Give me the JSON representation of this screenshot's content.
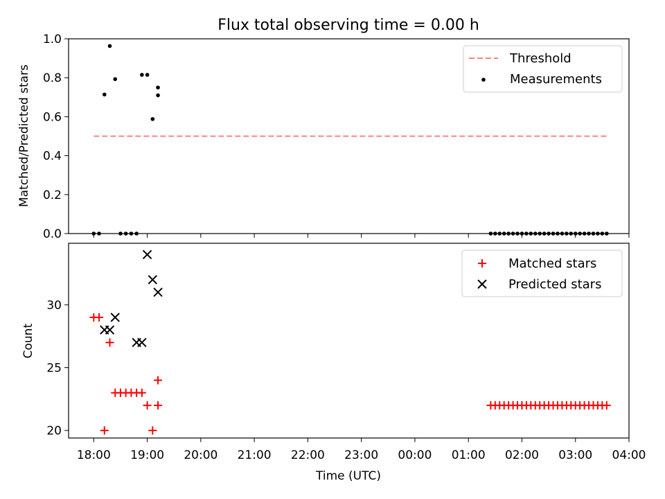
{
  "title": "Flux total observing time = 0.00 h",
  "xlabel": "Time (UTC)",
  "x_ticks": [
    "18:00",
    "19:00",
    "20:00",
    "21:00",
    "22:00",
    "23:00",
    "00:00",
    "01:00",
    "02:00",
    "03:00",
    "04:00"
  ],
  "x_range_hours": [
    17.53,
    28.0
  ],
  "chart_data": [
    {
      "type": "scatter",
      "ylabel": "Matched/Predicted stars",
      "ylim": [
        0.0,
        1.0
      ],
      "y_ticks": [
        "0.0",
        "0.2",
        "0.4",
        "0.6",
        "0.8",
        "1.0"
      ],
      "legend_position": "top-right",
      "legend": [
        "Threshold",
        "Measurements"
      ],
      "threshold": {
        "name": "Threshold",
        "value": 0.5,
        "x_range": [
          "18:00",
          "03:35"
        ],
        "color": "#ff8080"
      },
      "series": [
        {
          "name": "Measurements",
          "color": "#000000",
          "x": [
            "18:00",
            "18:06",
            "18:12",
            "18:18",
            "18:24",
            "18:30",
            "18:36",
            "18:42",
            "18:48",
            "18:54",
            "19:00",
            "19:06",
            "19:12",
            "01:25",
            "01:30",
            "01:35",
            "01:40",
            "01:45",
            "01:50",
            "01:55",
            "02:00",
            "02:05",
            "02:10",
            "02:15",
            "02:20",
            "02:25",
            "02:30",
            "02:35",
            "02:40",
            "02:45",
            "02:50",
            "02:55",
            "03:00",
            "03:05",
            "03:10",
            "03:15",
            "03:20",
            "03:25",
            "03:30",
            "03:35"
          ],
          "y": [
            0.0,
            0.0,
            0.714,
            0.963,
            0.793,
            0.0,
            0.0,
            0.0,
            0.0,
            0.815,
            0.815,
            0.588,
            0.75,
            0.0,
            0.0,
            0.0,
            0.0,
            0.0,
            0.0,
            0.0,
            0.0,
            0.0,
            0.0,
            0.0,
            0.0,
            0.0,
            0.0,
            0.0,
            0.0,
            0.0,
            0.0,
            0.0,
            0.0,
            0.0,
            0.0,
            0.0,
            0.0,
            0.0,
            0.0,
            0.0
          ]
        }
      ],
      "extra_points": [
        {
          "x": "19:12",
          "y": 0.71
        }
      ]
    },
    {
      "type": "scatter",
      "ylabel": "Count",
      "ylim": [
        19.4,
        34.9
      ],
      "y_ticks": [
        "20",
        "25",
        "30"
      ],
      "y_tick_values": [
        20,
        25,
        30
      ],
      "legend_position": "top-right",
      "legend": [
        "Matched stars",
        "Predicted stars"
      ],
      "series": [
        {
          "name": "Matched stars",
          "marker": "plus",
          "color": "#ff0000",
          "x": [
            "18:00",
            "18:06",
            "18:12",
            "18:18",
            "18:24",
            "18:30",
            "18:36",
            "18:42",
            "18:48",
            "18:54",
            "19:00",
            "19:06",
            "19:12",
            "19:12",
            "01:25",
            "01:30",
            "01:35",
            "01:40",
            "01:45",
            "01:50",
            "01:55",
            "02:00",
            "02:05",
            "02:10",
            "02:15",
            "02:20",
            "02:25",
            "02:30",
            "02:35",
            "02:40",
            "02:45",
            "02:50",
            "02:55",
            "03:00",
            "03:05",
            "03:10",
            "03:15",
            "03:20",
            "03:25",
            "03:30",
            "03:35"
          ],
          "y": [
            29,
            29,
            20,
            27,
            23,
            23,
            23,
            23,
            23,
            23,
            22,
            20,
            24,
            22,
            22,
            22,
            22,
            22,
            22,
            22,
            22,
            22,
            22,
            22,
            22,
            22,
            22,
            22,
            22,
            22,
            22,
            22,
            22,
            22,
            22,
            22,
            22,
            22,
            22,
            22,
            22
          ]
        },
        {
          "name": "Predicted stars",
          "marker": "x",
          "color": "#000000",
          "x": [
            "18:12",
            "18:18",
            "18:24",
            "18:48",
            "18:54",
            "19:00",
            "19:06",
            "19:12"
          ],
          "y": [
            28,
            28,
            29,
            27,
            27,
            34,
            32,
            31
          ]
        }
      ]
    }
  ]
}
